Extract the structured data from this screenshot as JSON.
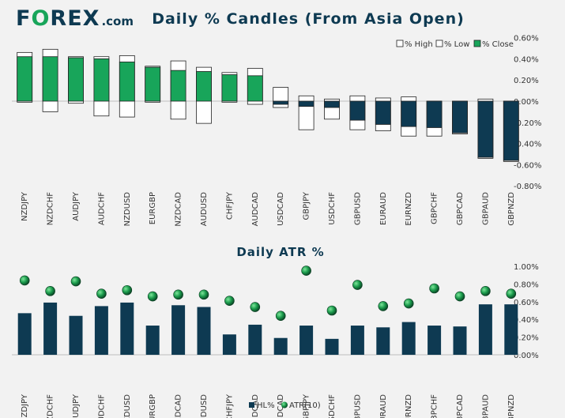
{
  "logo": {
    "pre": "F",
    "o": "O",
    "post": "REX",
    "suffix": ".com"
  },
  "colors": {
    "navy": "#0e3a52",
    "green": "#18a55a",
    "axis_text": "#333333",
    "background": "#f2f2f2"
  },
  "chart_data": [
    {
      "type": "candles",
      "title": "Daily % Candles (From Asia Open)",
      "legend": [
        "% High",
        "% Low",
        "% Close"
      ],
      "legend_position": "top-right",
      "yticks": [
        "0.60%",
        "0.40%",
        "0.20%",
        "0.00%",
        "-0.20%",
        "-0.40%",
        "-0.60%",
        "-0.80%"
      ],
      "ylim": [
        -0.8,
        0.6
      ],
      "categories": [
        "NZDJPY",
        "NZDCHF",
        "AUDJPY",
        "AUDCHF",
        "NZDUSD",
        "EURGBP",
        "NZDCAD",
        "AUDUSD",
        "CHFJPY",
        "AUDCAD",
        "USDCAD",
        "GBPJPY",
        "USDCHF",
        "GBPUSD",
        "EURAUD",
        "EURNZD",
        "GBPCHF",
        "GBPCAD",
        "GBPAUD",
        "GBPNZD"
      ],
      "high": [
        0.46,
        0.49,
        0.42,
        0.42,
        0.43,
        0.33,
        0.38,
        0.32,
        0.27,
        0.31,
        0.13,
        0.05,
        0.02,
        0.05,
        0.03,
        0.04,
        0.0,
        0.0,
        0.02,
        0.0
      ],
      "low": [
        -0.01,
        -0.1,
        -0.02,
        -0.14,
        -0.15,
        -0.01,
        -0.17,
        -0.21,
        -0.01,
        -0.03,
        -0.06,
        -0.27,
        -0.17,
        -0.27,
        -0.28,
        -0.33,
        -0.33,
        -0.31,
        -0.54,
        -0.57
      ],
      "close": [
        0.42,
        0.42,
        0.41,
        0.4,
        0.37,
        0.32,
        0.29,
        0.28,
        0.25,
        0.24,
        -0.03,
        -0.05,
        -0.06,
        -0.18,
        -0.22,
        -0.24,
        -0.25,
        -0.3,
        -0.53,
        -0.56
      ]
    },
    {
      "type": "bar+scatter",
      "title": "Daily ATR %",
      "legend": [
        "HL%",
        "ATR(10)"
      ],
      "legend_position": "bottom",
      "yticks": [
        "1.00%",
        "0.80%",
        "0.60%",
        "0.40%",
        "0.20%",
        "0.00%"
      ],
      "ylim": [
        0,
        1.0
      ],
      "categories": [
        "NZDJPY",
        "NZDCHF",
        "AUDJPY",
        "AUDCHF",
        "NZDUSD",
        "EURGBP",
        "NZDCAD",
        "AUDUSD",
        "CHFJPY",
        "AUDCAD",
        "USDCAD",
        "GBPJPY",
        "USDCHF",
        "GBPUSD",
        "EURAUD",
        "EURNZD",
        "GBPCHF",
        "GBPCAD",
        "GBPAUD",
        "GBPNZD"
      ],
      "hl": [
        0.47,
        0.59,
        0.44,
        0.55,
        0.59,
        0.33,
        0.56,
        0.54,
        0.23,
        0.34,
        0.19,
        0.33,
        0.18,
        0.33,
        0.31,
        0.37,
        0.33,
        0.32,
        0.57,
        0.57
      ],
      "atr": [
        0.84,
        0.72,
        0.83,
        0.69,
        0.73,
        0.66,
        0.68,
        0.68,
        0.61,
        0.54,
        0.44,
        0.95,
        0.5,
        0.79,
        0.55,
        0.58,
        0.75,
        0.66,
        0.72,
        0.69
      ]
    }
  ]
}
